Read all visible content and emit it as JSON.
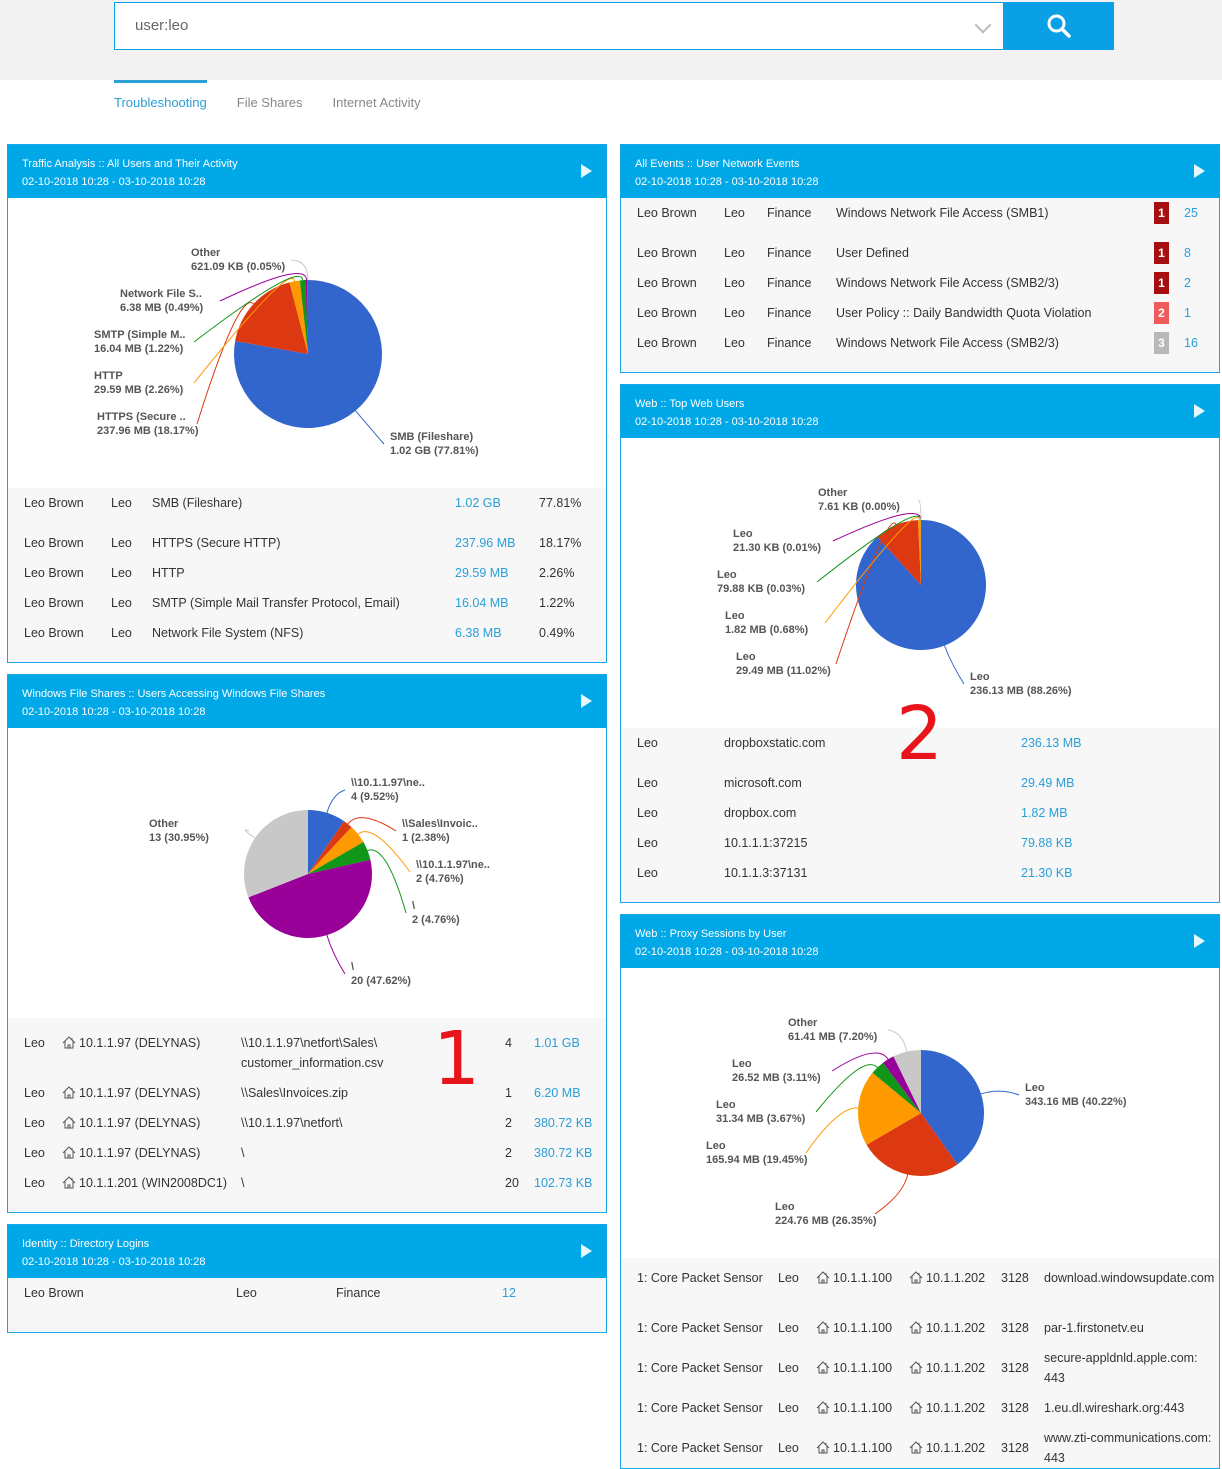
{
  "search": {
    "value": "user:leo",
    "button_icon": "search-icon"
  },
  "tabs": [
    {
      "label": "Troubleshooting",
      "active": true
    },
    {
      "label": "File Shares"
    },
    {
      "label": "Internet Activity"
    }
  ],
  "colors": {
    "accent": "#00a8e8",
    "slices": [
      "#3366cc",
      "#dc3912",
      "#ff9900",
      "#109618",
      "#990099",
      "#c8c8c8"
    ]
  },
  "annotations": [
    "1",
    "2"
  ],
  "panels": {
    "traffic": {
      "title": "Traffic Analysis :: All Users and Their Activity",
      "range": "02-10-2018 10:28 - 03-10-2018 10:28",
      "rows": [
        [
          "Leo Brown",
          "Leo",
          "SMB (Fileshare)",
          "1.02 GB",
          "77.81%"
        ],
        [
          "Leo Brown",
          "Leo",
          "HTTPS (Secure HTTP)",
          "237.96 MB",
          "18.17%"
        ],
        [
          "Leo Brown",
          "Leo",
          "HTTP",
          "29.59 MB",
          "2.26%"
        ],
        [
          "Leo Brown",
          "Leo",
          "SMTP (Simple Mail Transfer Protocol, Email)",
          "16.04 MB",
          "1.22%"
        ],
        [
          "Leo Brown",
          "Leo",
          "Network File System (NFS)",
          "6.38 MB",
          "0.49%"
        ]
      ]
    },
    "fileshares": {
      "title": "Windows File Shares :: Users Accessing Windows File Shares",
      "range": "02-10-2018 10:28 - 03-10-2018 10:28",
      "rows": [
        [
          "Leo",
          "10.1.1.97 (DELYNAS)",
          "\\\\10.1.1.97\\netfort\\Sales\\ customer_information.csv",
          "4",
          "1.01 GB"
        ],
        [
          "Leo",
          "10.1.1.97 (DELYNAS)",
          "\\\\Sales\\Invoices.zip",
          "1",
          "6.20 MB"
        ],
        [
          "Leo",
          "10.1.1.97 (DELYNAS)",
          "\\\\10.1.1.97\\netfort\\",
          "2",
          "380.72 KB"
        ],
        [
          "Leo",
          "10.1.1.97 (DELYNAS)",
          "\\",
          "2",
          "380.72 KB"
        ],
        [
          "Leo",
          "10.1.1.201 (WIN2008DC1)",
          "\\",
          "20",
          "102.73 KB"
        ]
      ]
    },
    "identity": {
      "title": "Identity :: Directory Logins",
      "range": "02-10-2018 10:28 - 03-10-2018 10:28",
      "rows": [
        [
          "Leo Brown",
          "Leo",
          "Finance",
          "12"
        ]
      ]
    },
    "events": {
      "title": "All Events :: User Network Events",
      "range": "02-10-2018 10:28 - 03-10-2018 10:28",
      "rows": [
        [
          "Leo Brown",
          "Leo",
          "Finance",
          "Windows Network File Access (SMB1)",
          "1",
          "25"
        ],
        [
          "Leo Brown",
          "Leo",
          "Finance",
          "User Defined",
          "1",
          "8"
        ],
        [
          "Leo Brown",
          "Leo",
          "Finance",
          "Windows Network File Access (SMB2/3)",
          "1",
          "2"
        ],
        [
          "Leo Brown",
          "Leo",
          "Finance",
          "User Policy :: Daily Bandwidth Quota Violation",
          "2",
          "1"
        ],
        [
          "Leo Brown",
          "Leo",
          "Finance",
          "Windows Network File Access (SMB2/3)",
          "3",
          "16"
        ]
      ],
      "severity_colors": {
        "1": "#a50f0f",
        "2": "#ef5b5b",
        "3": "#b8b8b8"
      }
    },
    "webusers": {
      "title": "Web :: Top Web Users",
      "range": "02-10-2018 10:28 - 03-10-2018 10:28",
      "rows": [
        [
          "Leo",
          "dropboxstatic.com",
          "236.13 MB"
        ],
        [
          "Leo",
          "microsoft.com",
          "29.49 MB"
        ],
        [
          "Leo",
          "dropbox.com",
          "1.82 MB"
        ],
        [
          "Leo",
          "10.1.1.1:37215",
          "79.88 KB"
        ],
        [
          "Leo",
          "10.1.1.3:37131",
          "21.30 KB"
        ]
      ]
    },
    "proxy": {
      "title": "Web :: Proxy Sessions by User",
      "range": "02-10-2018 10:28 - 03-10-2018 10:28",
      "rows": [
        [
          "1: Core Packet Sensor",
          "Leo",
          "10.1.1.100",
          "10.1.1.202",
          "3128",
          "download.windowsupdate.com"
        ],
        [
          "1: Core Packet Sensor",
          "Leo",
          "10.1.1.100",
          "10.1.1.202",
          "3128",
          "par-1.firstonetv.eu"
        ],
        [
          "1: Core Packet Sensor",
          "Leo",
          "10.1.1.100",
          "10.1.1.202",
          "3128",
          "secure-appldnld.apple.com: 443"
        ],
        [
          "1: Core Packet Sensor",
          "Leo",
          "10.1.1.100",
          "10.1.1.202",
          "3128",
          "1.eu.dl.wireshark.org:443"
        ],
        [
          "1: Core Packet Sensor",
          "Leo",
          "10.1.1.100",
          "10.1.1.202",
          "3128",
          "www.zti-communications.com: 443"
        ]
      ]
    }
  },
  "chart_data": [
    {
      "type": "pie",
      "panel": "traffic",
      "slices": [
        {
          "label": "SMB (Fileshare)",
          "text": "1.02 GB (77.81%)",
          "value": 77.81
        },
        {
          "label": "HTTPS (Secure ..",
          "text": "237.96 MB (18.17%)",
          "value": 18.17
        },
        {
          "label": "HTTP",
          "text": "29.59 MB (2.26%)",
          "value": 2.26
        },
        {
          "label": "SMTP (Simple M..",
          "text": "16.04 MB (1.22%)",
          "value": 1.22
        },
        {
          "label": "Network File S..",
          "text": "6.38 MB (0.49%)",
          "value": 0.49
        },
        {
          "label": "Other",
          "text": "621.09 KB (0.05%)",
          "value": 0.05
        }
      ]
    },
    {
      "type": "pie",
      "panel": "fileshares",
      "slices": [
        {
          "label": "\\\\10.1.1.97\\ne..",
          "text": "4 (9.52%)",
          "value": 9.52
        },
        {
          "label": "\\\\Sales\\Invoic..",
          "text": "1 (2.38%)",
          "value": 2.38
        },
        {
          "label": "\\\\10.1.1.97\\ne..",
          "text": "2 (4.76%)",
          "value": 4.76
        },
        {
          "label": "\\",
          "text": "2 (4.76%)",
          "value": 4.76
        },
        {
          "label": "\\",
          "text": "20 (47.62%)",
          "value": 47.62
        },
        {
          "label": "Other",
          "text": "13 (30.95%)",
          "value": 30.95
        }
      ]
    },
    {
      "type": "pie",
      "panel": "webusers",
      "slices": [
        {
          "label": "Leo",
          "text": "236.13 MB (88.26%)",
          "value": 88.26
        },
        {
          "label": "Leo",
          "text": "29.49 MB (11.02%)",
          "value": 11.02
        },
        {
          "label": "Leo",
          "text": "1.82 MB (0.68%)",
          "value": 0.68
        },
        {
          "label": "Leo",
          "text": "79.88 KB (0.03%)",
          "value": 0.03
        },
        {
          "label": "Leo",
          "text": "21.30 KB (0.01%)",
          "value": 0.01
        },
        {
          "label": "Other",
          "text": "7.61 KB (0.00%)",
          "value": 0.004
        }
      ]
    },
    {
      "type": "pie",
      "panel": "proxy",
      "slices": [
        {
          "label": "Leo",
          "text": "343.16 MB (40.22%)",
          "value": 40.22
        },
        {
          "label": "Leo",
          "text": "224.76 MB (26.35%)",
          "value": 26.35
        },
        {
          "label": "Leo",
          "text": "165.94 MB (19.45%)",
          "value": 19.45
        },
        {
          "label": "Leo",
          "text": "31.34 MB (3.67%)",
          "value": 3.67
        },
        {
          "label": "Leo",
          "text": "26.52 MB (3.11%)",
          "value": 3.11
        },
        {
          "label": "Other",
          "text": "61.41 MB (7.20%)",
          "value": 7.2
        }
      ]
    }
  ]
}
